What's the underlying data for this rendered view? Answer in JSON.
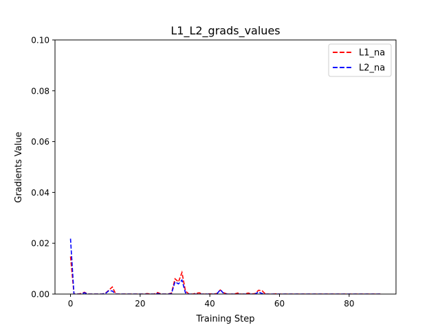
{
  "chart_data": {
    "type": "line",
    "title": "L1_L2_grads_values",
    "xlabel": "Training Step",
    "ylabel": "Gradients Value",
    "xlim": [
      -4.45,
      93.45
    ],
    "ylim": [
      0,
      0.1
    ],
    "xticks": [
      0,
      20,
      40,
      60,
      80
    ],
    "xtick_labels": [
      "0",
      "20",
      "40",
      "60",
      "80"
    ],
    "yticks": [
      0,
      0.02,
      0.04,
      0.06,
      0.08,
      0.1
    ],
    "ytick_labels": [
      "0.00",
      "0.02",
      "0.04",
      "0.06",
      "0.08",
      "0.10"
    ],
    "grid": false,
    "legend_position": "top-right",
    "x": [
      0,
      1,
      2,
      3,
      4,
      5,
      6,
      7,
      8,
      9,
      10,
      11,
      12,
      13,
      14,
      15,
      16,
      17,
      18,
      19,
      20,
      21,
      22,
      23,
      24,
      25,
      26,
      27,
      28,
      29,
      30,
      31,
      32,
      33,
      34,
      35,
      36,
      37,
      38,
      39,
      40,
      41,
      42,
      43,
      44,
      45,
      46,
      47,
      48,
      49,
      50,
      51,
      52,
      53,
      54,
      55,
      56,
      57,
      58,
      59,
      60,
      61,
      62,
      63,
      64,
      65,
      66,
      67,
      68,
      69,
      70,
      71,
      72,
      73,
      74,
      75,
      76,
      77,
      78,
      79,
      80,
      81,
      82,
      83,
      84,
      85,
      86,
      87,
      88,
      89
    ],
    "series": [
      {
        "name": "L1_na",
        "color": "#ff0000",
        "linestyle": "dashed",
        "values": [
          0.0148,
          0,
          0,
          0.0002,
          0.0007,
          0,
          0,
          0,
          0,
          0,
          0.0003,
          0.0015,
          0.0028,
          0,
          0,
          0,
          0,
          0,
          0,
          0,
          0,
          0,
          0.0002,
          0,
          0,
          0.0006,
          0,
          0,
          0,
          0.0004,
          0.006,
          0.0048,
          0.0085,
          0.0012,
          0,
          0,
          0.0003,
          0.0005,
          0,
          0,
          0.0001,
          0,
          0.0002,
          0.0016,
          0.0005,
          0,
          0,
          0,
          0.0004,
          0,
          0,
          0.0004,
          0,
          0.0002,
          0.0015,
          0.0013,
          0,
          0,
          0,
          0.0001,
          0,
          0,
          0,
          0,
          0,
          0,
          0,
          0,
          0,
          0,
          0,
          0,
          0,
          0,
          0,
          0,
          0,
          0,
          0,
          0,
          0,
          0,
          0,
          0,
          0,
          0,
          0,
          0,
          0,
          0
        ]
      },
      {
        "name": "L2_na",
        "color": "#0000ff",
        "linestyle": "dashed",
        "values": [
          0.0218,
          0,
          0,
          0,
          0.0005,
          0,
          0,
          0,
          0,
          0,
          0.0002,
          0.0013,
          0.0012,
          0,
          0,
          0,
          0,
          0,
          0,
          0,
          0,
          0,
          0,
          0,
          0,
          0.0002,
          0,
          0,
          0,
          0.0002,
          0.0048,
          0.004,
          0.0055,
          0.0005,
          0,
          0,
          0,
          0,
          0,
          0,
          0,
          0,
          0,
          0.0017,
          0.0002,
          0,
          0,
          0,
          0,
          0,
          0,
          0,
          0,
          0,
          0.0008,
          0.0002,
          0,
          0,
          0,
          0,
          0,
          0,
          0,
          0,
          0,
          0,
          0,
          0,
          0,
          0,
          0,
          0,
          0,
          0,
          0,
          0,
          0,
          0,
          0,
          0,
          0,
          0,
          0,
          0,
          0,
          0,
          0,
          0,
          0,
          0
        ]
      }
    ]
  }
}
